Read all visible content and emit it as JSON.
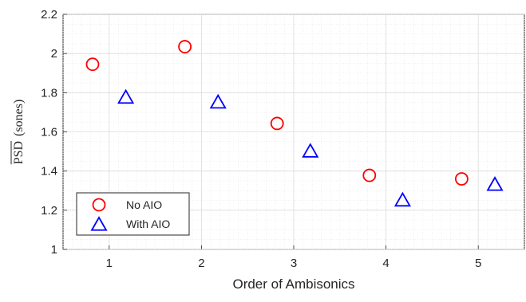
{
  "chart_data": {
    "type": "scatter",
    "xlabel": "Order of Ambisonics",
    "ylabel": "PSD (sones)",
    "ylabel_overlined": "PSD",
    "ylabel_unit": "(sones)",
    "xlim": [
      0.5,
      5.5
    ],
    "ylim": [
      1,
      2.2
    ],
    "x_ticks": [
      1,
      2,
      3,
      4,
      5
    ],
    "x_tick_labels": [
      "1",
      "2",
      "3",
      "4",
      "5"
    ],
    "y_ticks": [
      1,
      1.2,
      1.4,
      1.6,
      1.8,
      2,
      2.2
    ],
    "y_tick_labels": [
      "1",
      "1.2",
      "1.4",
      "1.6",
      "1.8",
      "2",
      "2.2"
    ],
    "grid": true,
    "minor_grid": true,
    "legend_position": "bottom-left",
    "series": [
      {
        "name": "No AIO",
        "marker": "circle",
        "color": "#ff0000",
        "x": [
          0.82,
          1.82,
          2.82,
          3.82,
          4.82
        ],
        "y": [
          1.945,
          2.035,
          1.643,
          1.378,
          1.36
        ]
      },
      {
        "name": "With AIO",
        "marker": "triangle",
        "color": "#0000ff",
        "x": [
          1.18,
          2.18,
          3.18,
          4.18,
          5.18
        ],
        "y": [
          1.775,
          1.75,
          1.5,
          1.25,
          1.33
        ]
      }
    ]
  }
}
